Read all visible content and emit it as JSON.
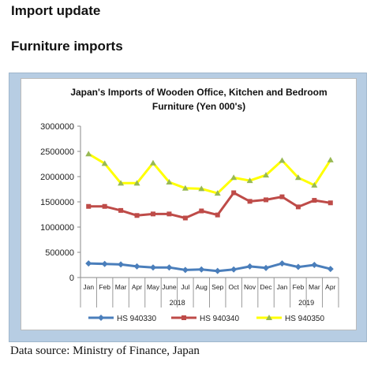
{
  "page": {
    "title": "Import update",
    "section": "Furniture imports",
    "source": "Data source: Ministry of Finance, Japan"
  },
  "chart_data": {
    "type": "line",
    "title_line1": "Japan's Imports of  Wooden  Office, Kitchen and Bedroom",
    "title_line2": "Furniture (Yen 000's)",
    "categories": [
      "Jan",
      "Feb",
      "Mar",
      "Apr",
      "May",
      "June",
      "Jul",
      "Aug",
      "Sep",
      "Oct",
      "Nov",
      "Dec",
      "Jan",
      "Feb",
      "Mar",
      "Apr"
    ],
    "year_groups": [
      {
        "label": "2018",
        "count": 12
      },
      {
        "label": "2019",
        "count": 4
      }
    ],
    "ylim": [
      0,
      3000000
    ],
    "yticks": [
      "0",
      "500000",
      "1000000",
      "1500000",
      "2000000",
      "2500000",
      "3000000"
    ],
    "ytick_values": [
      0,
      500000,
      1000000,
      1500000,
      2000000,
      2500000,
      3000000
    ],
    "grid": false,
    "legend_position": "bottom",
    "series": [
      {
        "name": "HS 940330",
        "color": "#4a7ebb",
        "marker": "diamond",
        "values": [
          280000,
          270000,
          260000,
          220000,
          200000,
          200000,
          150000,
          160000,
          130000,
          160000,
          220000,
          190000,
          280000,
          210000,
          250000,
          170000
        ]
      },
      {
        "name": "HS 940340",
        "color": "#be4b48",
        "marker": "square",
        "values": [
          1410000,
          1410000,
          1330000,
          1230000,
          1260000,
          1260000,
          1180000,
          1320000,
          1240000,
          1680000,
          1510000,
          1540000,
          1600000,
          1400000,
          1530000,
          1480000
        ]
      },
      {
        "name": "HS 940350",
        "color": "#ffff00",
        "marker": "triangle",
        "marker_color": "#98b954",
        "values": [
          2450000,
          2260000,
          1870000,
          1870000,
          2270000,
          1890000,
          1770000,
          1760000,
          1670000,
          1980000,
          1920000,
          2030000,
          2320000,
          1980000,
          1830000,
          2330000
        ]
      }
    ]
  }
}
